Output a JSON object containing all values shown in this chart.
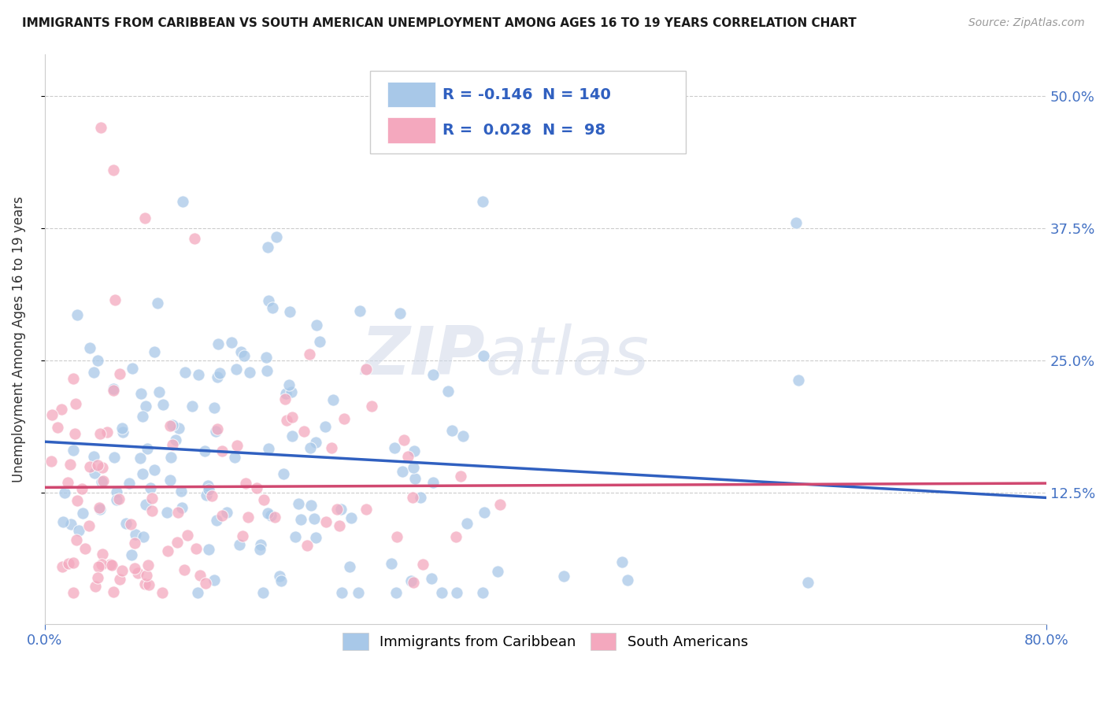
{
  "title": "IMMIGRANTS FROM CARIBBEAN VS SOUTH AMERICAN UNEMPLOYMENT AMONG AGES 16 TO 19 YEARS CORRELATION CHART",
  "source": "Source: ZipAtlas.com",
  "ylabel": "Unemployment Among Ages 16 to 19 years",
  "legend_label1": "Immigrants from Caribbean",
  "legend_label2": "South Americans",
  "r1": "-0.146",
  "n1": "140",
  "r2": "0.028",
  "n2": "98",
  "color_blue": "#a8c8e8",
  "color_pink": "#f4a8be",
  "line_color_blue": "#3060c0",
  "line_color_pink": "#d04870",
  "axis_tick_color": "#4472c4",
  "xlim": [
    0.0,
    0.8
  ],
  "ylim": [
    0.0,
    0.54
  ],
  "y_tick_vals": [
    0.125,
    0.25,
    0.375,
    0.5
  ],
  "seed_blue": 42,
  "seed_pink": 99,
  "n_blue": 140,
  "n_pink": 98
}
